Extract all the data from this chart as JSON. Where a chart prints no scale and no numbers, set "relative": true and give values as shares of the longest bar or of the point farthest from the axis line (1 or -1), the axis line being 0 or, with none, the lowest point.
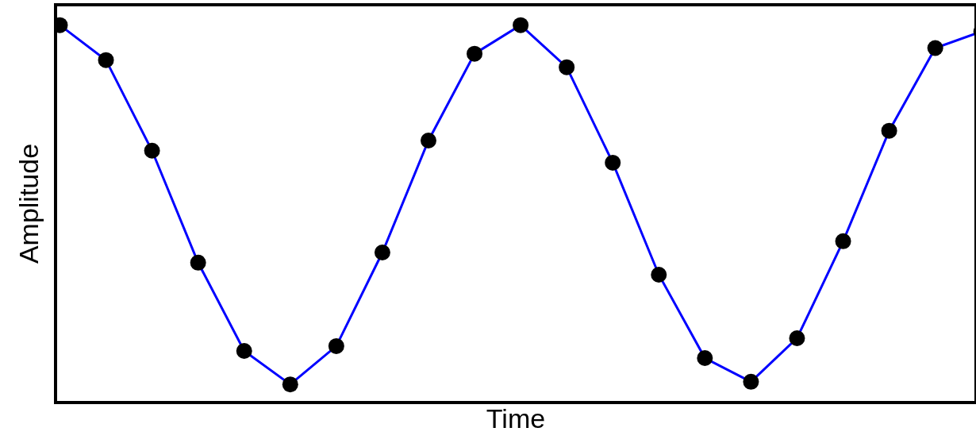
{
  "chart_data": {
    "type": "line",
    "relative": true,
    "xlabel": "Time",
    "ylabel": "Amplitude",
    "marker": "circle",
    "line_style": "solid",
    "categories": [
      null,
      null,
      null,
      null,
      null,
      null,
      null,
      null,
      null,
      null,
      null,
      null,
      null,
      null,
      null,
      null,
      null,
      null,
      null,
      null,
      null
    ],
    "series": [
      {
        "color": "#0000ff",
        "colors": [
          "#000000",
          "#000000",
          "#000000",
          "#000000",
          "#000000",
          "#000000",
          "#000000",
          "#000000",
          "#000000",
          "#000000",
          "#000000",
          "#000000",
          "#000000",
          "#000000",
          "#000000",
          "#000000",
          "#000000",
          "#000000",
          "#000000",
          "#000000",
          "#000000"
        ],
        "values": [
          1,
          0.907,
          0.666,
          0.368,
          0.133,
          0.044,
          0.146,
          0.395,
          0.693,
          0.924,
          1,
          0.888,
          0.634,
          0.336,
          0.114,
          0.051,
          0.167,
          0.425,
          0.719,
          0.939,
          0.983
        ]
      }
    ]
  }
}
